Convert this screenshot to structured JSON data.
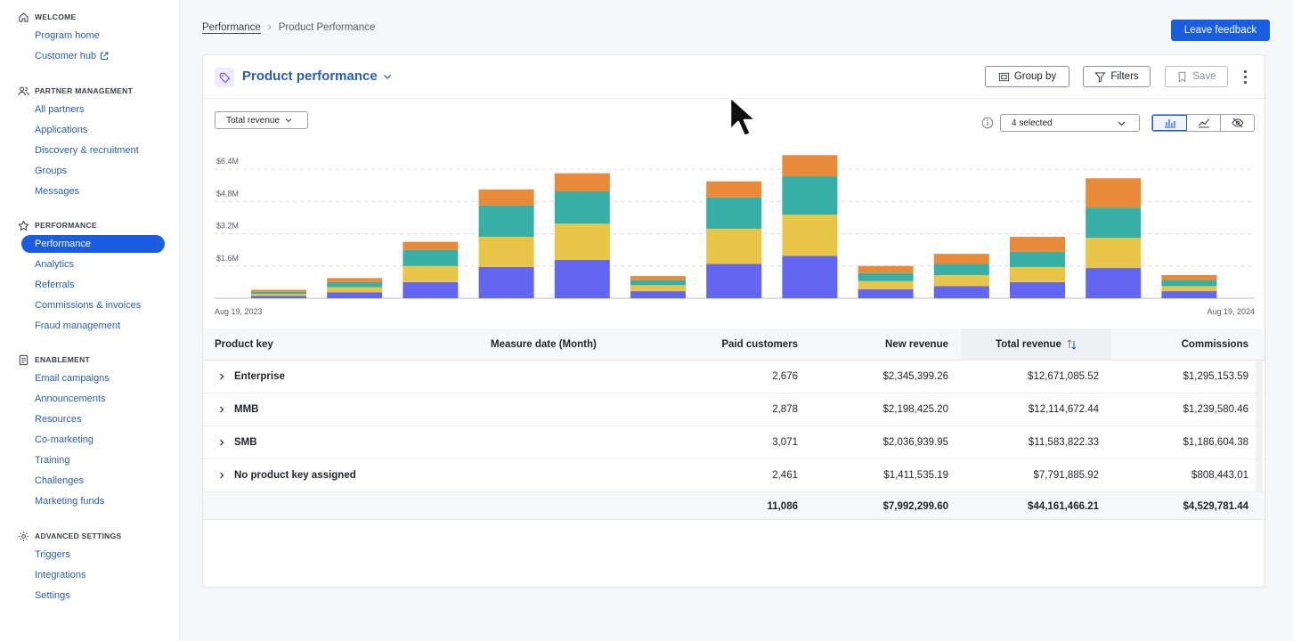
{
  "sidebar": {
    "sections": [
      {
        "title": "WELCOME",
        "icon": "home-icon",
        "items": [
          {
            "label": "Program home"
          },
          {
            "label": "Customer hub",
            "external": true
          }
        ]
      },
      {
        "title": "PARTNER MANAGEMENT",
        "icon": "users-icon",
        "items": [
          {
            "label": "All partners"
          },
          {
            "label": "Applications"
          },
          {
            "label": "Discovery & recruitment"
          },
          {
            "label": "Groups"
          },
          {
            "label": "Messages"
          }
        ]
      },
      {
        "title": "PERFORMANCE",
        "icon": "star-icon",
        "items": [
          {
            "label": "Performance",
            "active": true
          },
          {
            "label": "Analytics"
          },
          {
            "label": "Referrals"
          },
          {
            "label": "Commissions & invoices"
          },
          {
            "label": "Fraud management"
          }
        ]
      },
      {
        "title": "ENABLEMENT",
        "icon": "document-icon",
        "items": [
          {
            "label": "Email campaigns"
          },
          {
            "label": "Announcements"
          },
          {
            "label": "Resources"
          },
          {
            "label": "Co-marketing"
          },
          {
            "label": "Training"
          },
          {
            "label": "Challenges"
          },
          {
            "label": "Marketing funds"
          }
        ]
      },
      {
        "title": "ADVANCED SETTINGS",
        "icon": "gear-icon",
        "items": [
          {
            "label": "Triggers"
          },
          {
            "label": "Integrations"
          },
          {
            "label": "Settings"
          }
        ]
      }
    ]
  },
  "breadcrumb": {
    "parent": "Performance",
    "sep": "›",
    "current": "Product Performance"
  },
  "feedback_label": "Leave feedback",
  "card": {
    "title": "Product performance",
    "group_by": "Group by",
    "filters": "Filters",
    "save": "Save",
    "metric": "Total revenue",
    "series_select": "4 selected"
  },
  "colors": {
    "accent": "#1a5de0",
    "series": [
      "#6366f1",
      "#e8c547",
      "#36b0a4",
      "#e9893a"
    ]
  },
  "chart_data": {
    "type": "bar",
    "stacked": true,
    "y_ticks": [
      "$1.6M",
      "$3.2M",
      "$4.8M",
      "$6.4M"
    ],
    "y_tick_values": [
      1.6,
      3.2,
      4.8,
      6.4
    ],
    "ylim": [
      0,
      7.2
    ],
    "x_start_label": "Aug 19, 2023",
    "x_end_label": "Aug 19, 2024",
    "series_colors": [
      "#6366f1",
      "#e8c547",
      "#36b0a4",
      "#e9893a"
    ],
    "bars": [
      [
        0.12,
        0.1,
        0.1,
        0.1
      ],
      [
        0.3,
        0.25,
        0.25,
        0.2
      ],
      [
        0.8,
        0.8,
        0.8,
        0.4
      ],
      [
        1.55,
        1.5,
        1.55,
        0.8
      ],
      [
        1.9,
        1.8,
        1.6,
        0.9
      ],
      [
        0.35,
        0.3,
        0.25,
        0.2
      ],
      [
        1.7,
        1.75,
        1.55,
        0.8
      ],
      [
        2.1,
        2.05,
        1.9,
        1.05
      ],
      [
        0.45,
        0.4,
        0.4,
        0.35
      ],
      [
        0.6,
        0.55,
        0.55,
        0.5
      ],
      [
        0.8,
        0.75,
        0.75,
        0.75
      ],
      [
        1.5,
        1.5,
        1.5,
        1.45
      ],
      [
        0.35,
        0.25,
        0.3,
        0.25
      ]
    ]
  },
  "table": {
    "headers": {
      "product_key": "Product key",
      "measure_date": "Measure date (Month)",
      "paid": "Paid customers",
      "new_rev": "New revenue",
      "total_rev": "Total revenue",
      "comm": "Commissions"
    },
    "rows": [
      {
        "key": "Enterprise",
        "paid": "2,676",
        "new_rev": "$2,345,399.26",
        "total_rev": "$12,671,085.52",
        "comm": "$1,295,153.59"
      },
      {
        "key": "MMB",
        "paid": "2,878",
        "new_rev": "$2,198,425.20",
        "total_rev": "$12,114,672.44",
        "comm": "$1,239,580.46"
      },
      {
        "key": "SMB",
        "paid": "3,071",
        "new_rev": "$2,036,939.95",
        "total_rev": "$11,583,822.33",
        "comm": "$1,186,604.38"
      },
      {
        "key": "No product key assigned",
        "paid": "2,461",
        "new_rev": "$1,411,535.19",
        "total_rev": "$7,791,885.92",
        "comm": "$808,443.01"
      }
    ],
    "totals": {
      "paid": "11,086",
      "new_rev": "$7,992,299.60",
      "total_rev": "$44,161,466.21",
      "comm": "$4,529,781.44"
    }
  }
}
